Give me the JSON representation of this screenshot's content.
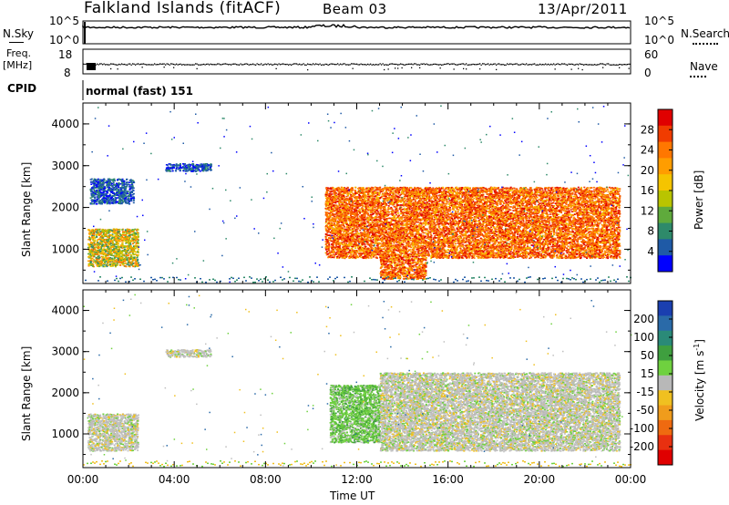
{
  "header": {
    "station": "Falkland Islands (fitACF)",
    "beam": "Beam 03",
    "date": "13/Apr/2011"
  },
  "panels": {
    "nsky": {
      "label": "N.Sky",
      "ticks": [
        "10^5",
        "10^0"
      ],
      "right_ticks": [
        "10^5",
        "10^0"
      ],
      "right_label": "N.Search"
    },
    "freq": {
      "label_top": "Freq.",
      "label_unit": "[MHz]",
      "ticks": [
        "18",
        "8"
      ],
      "right_ticks": [
        "60",
        "0"
      ],
      "right_label": "Nave"
    },
    "cpid": {
      "label": "CPID",
      "value": "normal (fast) 151"
    }
  },
  "colorbars": {
    "power": {
      "label": "Power [dB]",
      "ticks": [
        "28",
        "24",
        "20",
        "16",
        "12",
        "8",
        "4"
      ],
      "colors": [
        "#e00000",
        "#f03c00",
        "#ff7700",
        "#ff9d00",
        "#f5c400",
        "#b9c400",
        "#5faa3c",
        "#2e8a6a",
        "#1f5aa6",
        "#0000ff"
      ]
    },
    "velocity": {
      "label_main": "Velocity [m s",
      "label_sup": "-1",
      "label_end": "]",
      "ticks": [
        "200",
        "100",
        "50",
        "15",
        "-15",
        "-50",
        "-100",
        "-200"
      ],
      "colors": [
        "#1a3fb0",
        "#2a6aa8",
        "#2a8a78",
        "#3f9f3f",
        "#6fd13f",
        "#b8b8b8",
        "#f0c020",
        "#f09c1c",
        "#ef6a10",
        "#e83010",
        "#e00000"
      ]
    }
  },
  "chart_data": {
    "type": "heatmap",
    "xlabel": "Time UT",
    "ylabel": "Slant Range [km]",
    "x_ticks": [
      "00:00",
      "04:00",
      "08:00",
      "12:00",
      "16:00",
      "20:00",
      "00:00"
    ],
    "x_range_hours": [
      0,
      24
    ],
    "y_ticks": [
      1000,
      2000,
      3000,
      4000
    ],
    "y_range_km": [
      180,
      4500
    ],
    "power_regions": [
      {
        "t0": 0.2,
        "t1": 2.4,
        "r0": 600,
        "r1": 1500,
        "level": "green-orange"
      },
      {
        "t0": 0.3,
        "t1": 2.2,
        "r0": 2100,
        "r1": 2700,
        "level": "blue"
      },
      {
        "t0": 3.6,
        "t1": 5.6,
        "r0": 2880,
        "r1": 3060,
        "level": "blue"
      },
      {
        "t0": 10.6,
        "t1": 23.5,
        "r0": 800,
        "r1": 2500,
        "level": "red-orange"
      },
      {
        "t0": 13.0,
        "t1": 15.0,
        "r0": 300,
        "r1": 800,
        "level": "red-orange"
      }
    ],
    "velocity_regions": [
      {
        "t0": 0.2,
        "t1": 2.4,
        "r0": 600,
        "r1": 1500,
        "level": "gray"
      },
      {
        "t0": 3.6,
        "t1": 5.6,
        "r0": 2880,
        "r1": 3060,
        "level": "gray"
      },
      {
        "t0": 10.8,
        "t1": 13.0,
        "r0": 800,
        "r1": 2200,
        "level": "green"
      },
      {
        "t0": 13.0,
        "t1": 23.5,
        "r0": 600,
        "r1": 2500,
        "level": "gray"
      }
    ]
  },
  "colors": {
    "gray": "#bfbfbf",
    "green": "#6fd13f",
    "axis": "#000000"
  }
}
